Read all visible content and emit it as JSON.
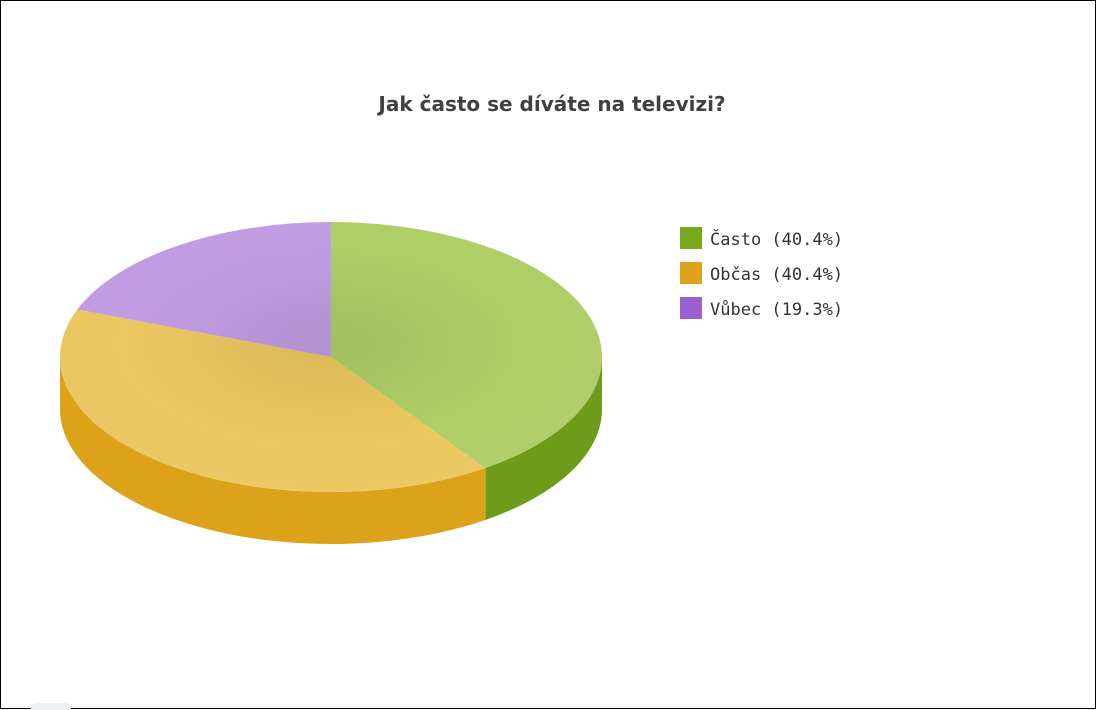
{
  "chart_data": {
    "type": "pie",
    "title": "Jak často se díváte na televizi?",
    "three_d": true,
    "legend_position": "right",
    "slices": [
      {
        "label": "Často",
        "value": 40.4,
        "legend": "Často (40.4%)",
        "color": "#b3d46a",
        "dark_color": "#6e9c1a",
        "swatch": "#78a81c"
      },
      {
        "label": "Občas",
        "value": 40.4,
        "legend": "Občas (40.4%)",
        "color": "#f2cc62",
        "dark_color": "#dca31a",
        "swatch": "#dba21a"
      },
      {
        "label": "Vůbec",
        "value": 19.3,
        "legend": "Vůbec (19.3%)",
        "color": "#c6a0e8",
        "dark_color": "#9a5ccc",
        "swatch": "#9b5fcf"
      }
    ]
  },
  "colors": {
    "frame_border": "#000000",
    "title": "#404040",
    "legend_text": "#333333"
  }
}
